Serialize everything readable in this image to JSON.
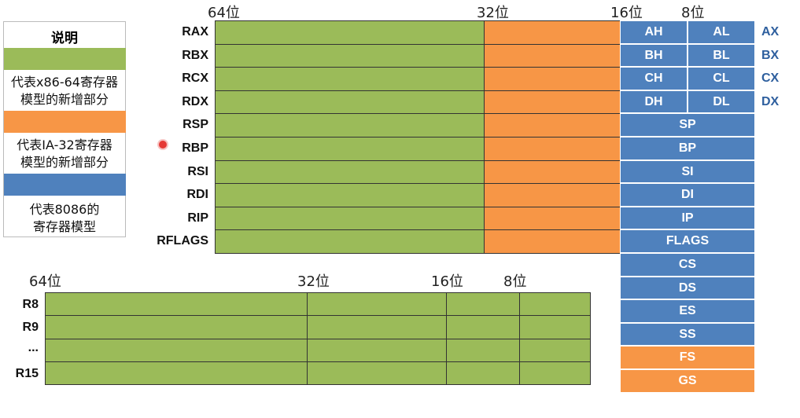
{
  "legend": {
    "title": "说明",
    "items": [
      {
        "color": "#9bbb59",
        "text1": "代表x86-64寄存器",
        "text2": "模型的新增部分"
      },
      {
        "color": "#f79646",
        "text1": "代表IA-32寄存器",
        "text2": "模型的新增部分"
      },
      {
        "color": "#4f81bd",
        "text1": "代表8086的",
        "text2": "寄存器模型"
      }
    ]
  },
  "top": {
    "bit_labels": [
      "64位",
      "32位",
      "16位",
      "8位"
    ],
    "registers": [
      "RAX",
      "RBX",
      "RCX",
      "RDX",
      "RSP",
      "RBP",
      "RSI",
      "RDI",
      "RIP",
      "RFLAGS"
    ],
    "split": [
      {
        "high": "AH",
        "low": "AL",
        "name": "AX"
      },
      {
        "high": "BH",
        "low": "BL",
        "name": "BX"
      },
      {
        "high": "CH",
        "low": "CL",
        "name": "CX"
      },
      {
        "high": "DH",
        "low": "DL",
        "name": "DX"
      }
    ],
    "full": [
      "SP",
      "BP",
      "SI",
      "DI",
      "IP",
      "FLAGS",
      "CS",
      "DS",
      "ES",
      "SS"
    ],
    "orange_full": [
      "FS",
      "GS"
    ]
  },
  "bottom": {
    "bit_labels": [
      "64位",
      "32位",
      "16位",
      "8位"
    ],
    "registers": [
      "R8",
      "R9",
      "...",
      "R15"
    ]
  }
}
